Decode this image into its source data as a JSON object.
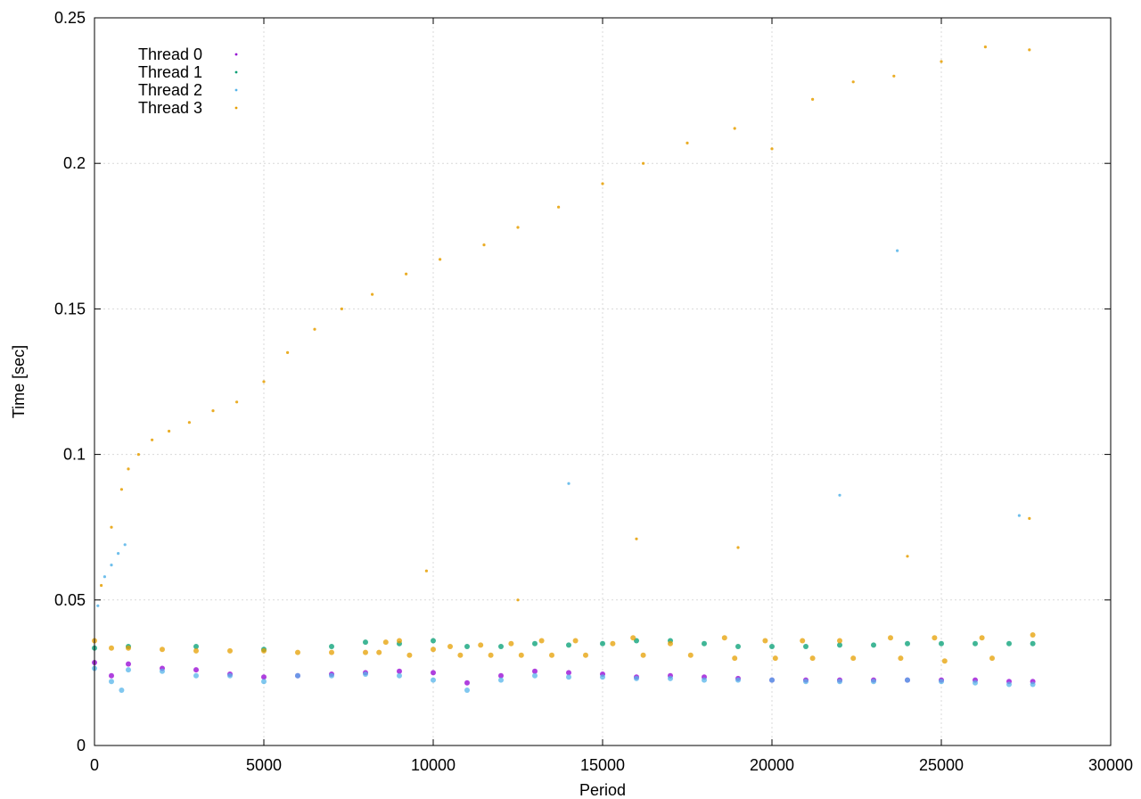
{
  "chart_data": {
    "type": "scatter",
    "xlabel": "Period",
    "ylabel": "Time [sec]",
    "xlim": [
      0,
      30000
    ],
    "ylim": [
      0,
      0.25
    ],
    "xticks": [
      0,
      5000,
      10000,
      15000,
      20000,
      25000,
      30000
    ],
    "xtick_labels": [
      "0",
      "5000",
      "10000",
      "15000",
      "20000",
      "25000",
      "30000"
    ],
    "yticks": [
      0,
      0.05,
      0.1,
      0.15,
      0.2,
      0.25
    ],
    "ytick_labels": [
      "0",
      "0.05",
      "0.1",
      "0.15",
      "0.2",
      "0.25"
    ],
    "grid": true,
    "legend_position": "top-left",
    "series": [
      {
        "name": "Thread 0",
        "color": "#9400d3",
        "points": [
          [
            0,
            0.0285
          ],
          [
            500,
            0.024
          ],
          [
            1000,
            0.028
          ],
          [
            2000,
            0.0265
          ],
          [
            3000,
            0.026
          ],
          [
            4000,
            0.0245
          ],
          [
            5000,
            0.0235
          ],
          [
            6000,
            0.024
          ],
          [
            7000,
            0.0245
          ],
          [
            8000,
            0.025
          ],
          [
            9000,
            0.0255
          ],
          [
            10000,
            0.025
          ],
          [
            11000,
            0.0215
          ],
          [
            12000,
            0.024
          ],
          [
            13000,
            0.0255
          ],
          [
            14000,
            0.025
          ],
          [
            15000,
            0.0245
          ],
          [
            16000,
            0.0235
          ],
          [
            17000,
            0.024
          ],
          [
            18000,
            0.0235
          ],
          [
            19000,
            0.023
          ],
          [
            20000,
            0.0225
          ],
          [
            21000,
            0.0225
          ],
          [
            22000,
            0.0225
          ],
          [
            23000,
            0.0225
          ],
          [
            24000,
            0.0225
          ],
          [
            25000,
            0.0225
          ],
          [
            26000,
            0.0225
          ],
          [
            27000,
            0.022
          ],
          [
            27700,
            0.022
          ]
        ]
      },
      {
        "name": "Thread 1",
        "color": "#009e73",
        "points": [
          [
            0,
            0.0335
          ],
          [
            1000,
            0.034
          ],
          [
            3000,
            0.034
          ],
          [
            5000,
            0.033
          ],
          [
            7000,
            0.034
          ],
          [
            8000,
            0.0355
          ],
          [
            9000,
            0.035
          ],
          [
            10000,
            0.036
          ],
          [
            11000,
            0.034
          ],
          [
            12000,
            0.034
          ],
          [
            13000,
            0.035
          ],
          [
            14000,
            0.0345
          ],
          [
            15000,
            0.035
          ],
          [
            16000,
            0.036
          ],
          [
            17000,
            0.036
          ],
          [
            18000,
            0.035
          ],
          [
            19000,
            0.034
          ],
          [
            20000,
            0.034
          ],
          [
            21000,
            0.034
          ],
          [
            22000,
            0.0345
          ],
          [
            23000,
            0.0345
          ],
          [
            24000,
            0.035
          ],
          [
            25000,
            0.035
          ],
          [
            26000,
            0.035
          ],
          [
            27000,
            0.035
          ],
          [
            27700,
            0.035
          ]
        ]
      },
      {
        "name": "Thread 2",
        "color": "#56b4e9",
        "points": [
          [
            0,
            0.0265
          ],
          [
            500,
            0.022
          ],
          [
            800,
            0.019
          ],
          [
            1000,
            0.026
          ],
          [
            2000,
            0.0255
          ],
          [
            3000,
            0.024
          ],
          [
            4000,
            0.024
          ],
          [
            5000,
            0.022
          ],
          [
            6000,
            0.024
          ],
          [
            7000,
            0.024
          ],
          [
            8000,
            0.0245
          ],
          [
            9000,
            0.024
          ],
          [
            10000,
            0.0225
          ],
          [
            11000,
            0.019
          ],
          [
            12000,
            0.0225
          ],
          [
            13000,
            0.024
          ],
          [
            14000,
            0.0235
          ],
          [
            15000,
            0.0235
          ],
          [
            16000,
            0.023
          ],
          [
            17000,
            0.023
          ],
          [
            18000,
            0.0225
          ],
          [
            19000,
            0.0225
          ],
          [
            20000,
            0.0225
          ],
          [
            21000,
            0.022
          ],
          [
            22000,
            0.022
          ],
          [
            23000,
            0.022
          ],
          [
            24000,
            0.0225
          ],
          [
            25000,
            0.022
          ],
          [
            26000,
            0.0215
          ],
          [
            27000,
            0.021
          ],
          [
            27700,
            0.021
          ]
        ],
        "outliers": [
          [
            100,
            0.048
          ],
          [
            300,
            0.058
          ],
          [
            500,
            0.062
          ],
          [
            700,
            0.066
          ],
          [
            900,
            0.069
          ],
          [
            14000,
            0.09
          ],
          [
            22000,
            0.086
          ],
          [
            23700,
            0.17
          ],
          [
            27300,
            0.079
          ]
        ]
      },
      {
        "name": "Thread 3",
        "color": "#e69f00",
        "points": [
          [
            0,
            0.036
          ],
          [
            500,
            0.0335
          ],
          [
            1000,
            0.0335
          ],
          [
            2000,
            0.033
          ],
          [
            3000,
            0.0325
          ],
          [
            4000,
            0.0325
          ],
          [
            5000,
            0.0325
          ],
          [
            6000,
            0.032
          ],
          [
            7000,
            0.032
          ],
          [
            8000,
            0.032
          ],
          [
            8400,
            0.032
          ],
          [
            8600,
            0.0355
          ],
          [
            9000,
            0.036
          ],
          [
            9300,
            0.031
          ],
          [
            10000,
            0.033
          ],
          [
            10500,
            0.034
          ],
          [
            10800,
            0.031
          ],
          [
            11400,
            0.0345
          ],
          [
            11700,
            0.031
          ],
          [
            12300,
            0.035
          ],
          [
            12600,
            0.031
          ],
          [
            13200,
            0.036
          ],
          [
            13500,
            0.031
          ],
          [
            14200,
            0.036
          ],
          [
            14500,
            0.031
          ],
          [
            15300,
            0.035
          ],
          [
            15900,
            0.037
          ],
          [
            16200,
            0.031
          ],
          [
            17000,
            0.035
          ],
          [
            17600,
            0.031
          ],
          [
            18600,
            0.037
          ],
          [
            18900,
            0.03
          ],
          [
            19800,
            0.036
          ],
          [
            20100,
            0.03
          ],
          [
            20900,
            0.036
          ],
          [
            21200,
            0.03
          ],
          [
            22000,
            0.036
          ],
          [
            22400,
            0.03
          ],
          [
            23500,
            0.037
          ],
          [
            23800,
            0.03
          ],
          [
            24800,
            0.037
          ],
          [
            25100,
            0.029
          ],
          [
            26200,
            0.037
          ],
          [
            26500,
            0.03
          ],
          [
            27700,
            0.038
          ]
        ],
        "outliers": [
          [
            200,
            0.055
          ],
          [
            500,
            0.075
          ],
          [
            800,
            0.088
          ],
          [
            1000,
            0.095
          ],
          [
            1300,
            0.1
          ],
          [
            1700,
            0.105
          ],
          [
            2200,
            0.108
          ],
          [
            2800,
            0.111
          ],
          [
            3500,
            0.115
          ],
          [
            4200,
            0.118
          ],
          [
            5000,
            0.125
          ],
          [
            5700,
            0.135
          ],
          [
            6500,
            0.143
          ],
          [
            7300,
            0.15
          ],
          [
            8200,
            0.155
          ],
          [
            9200,
            0.162
          ],
          [
            10200,
            0.167
          ],
          [
            11500,
            0.172
          ],
          [
            12500,
            0.178
          ],
          [
            13700,
            0.185
          ],
          [
            15000,
            0.193
          ],
          [
            16200,
            0.2
          ],
          [
            17500,
            0.207
          ],
          [
            18900,
            0.212
          ],
          [
            20000,
            0.205
          ],
          [
            21200,
            0.222
          ],
          [
            22400,
            0.228
          ],
          [
            23600,
            0.23
          ],
          [
            25000,
            0.235
          ],
          [
            26300,
            0.24
          ],
          [
            27600,
            0.239
          ],
          [
            9800,
            0.06
          ],
          [
            12500,
            0.05
          ],
          [
            16000,
            0.071
          ],
          [
            19000,
            0.068
          ],
          [
            24000,
            0.065
          ],
          [
            27600,
            0.078
          ]
        ]
      }
    ]
  }
}
